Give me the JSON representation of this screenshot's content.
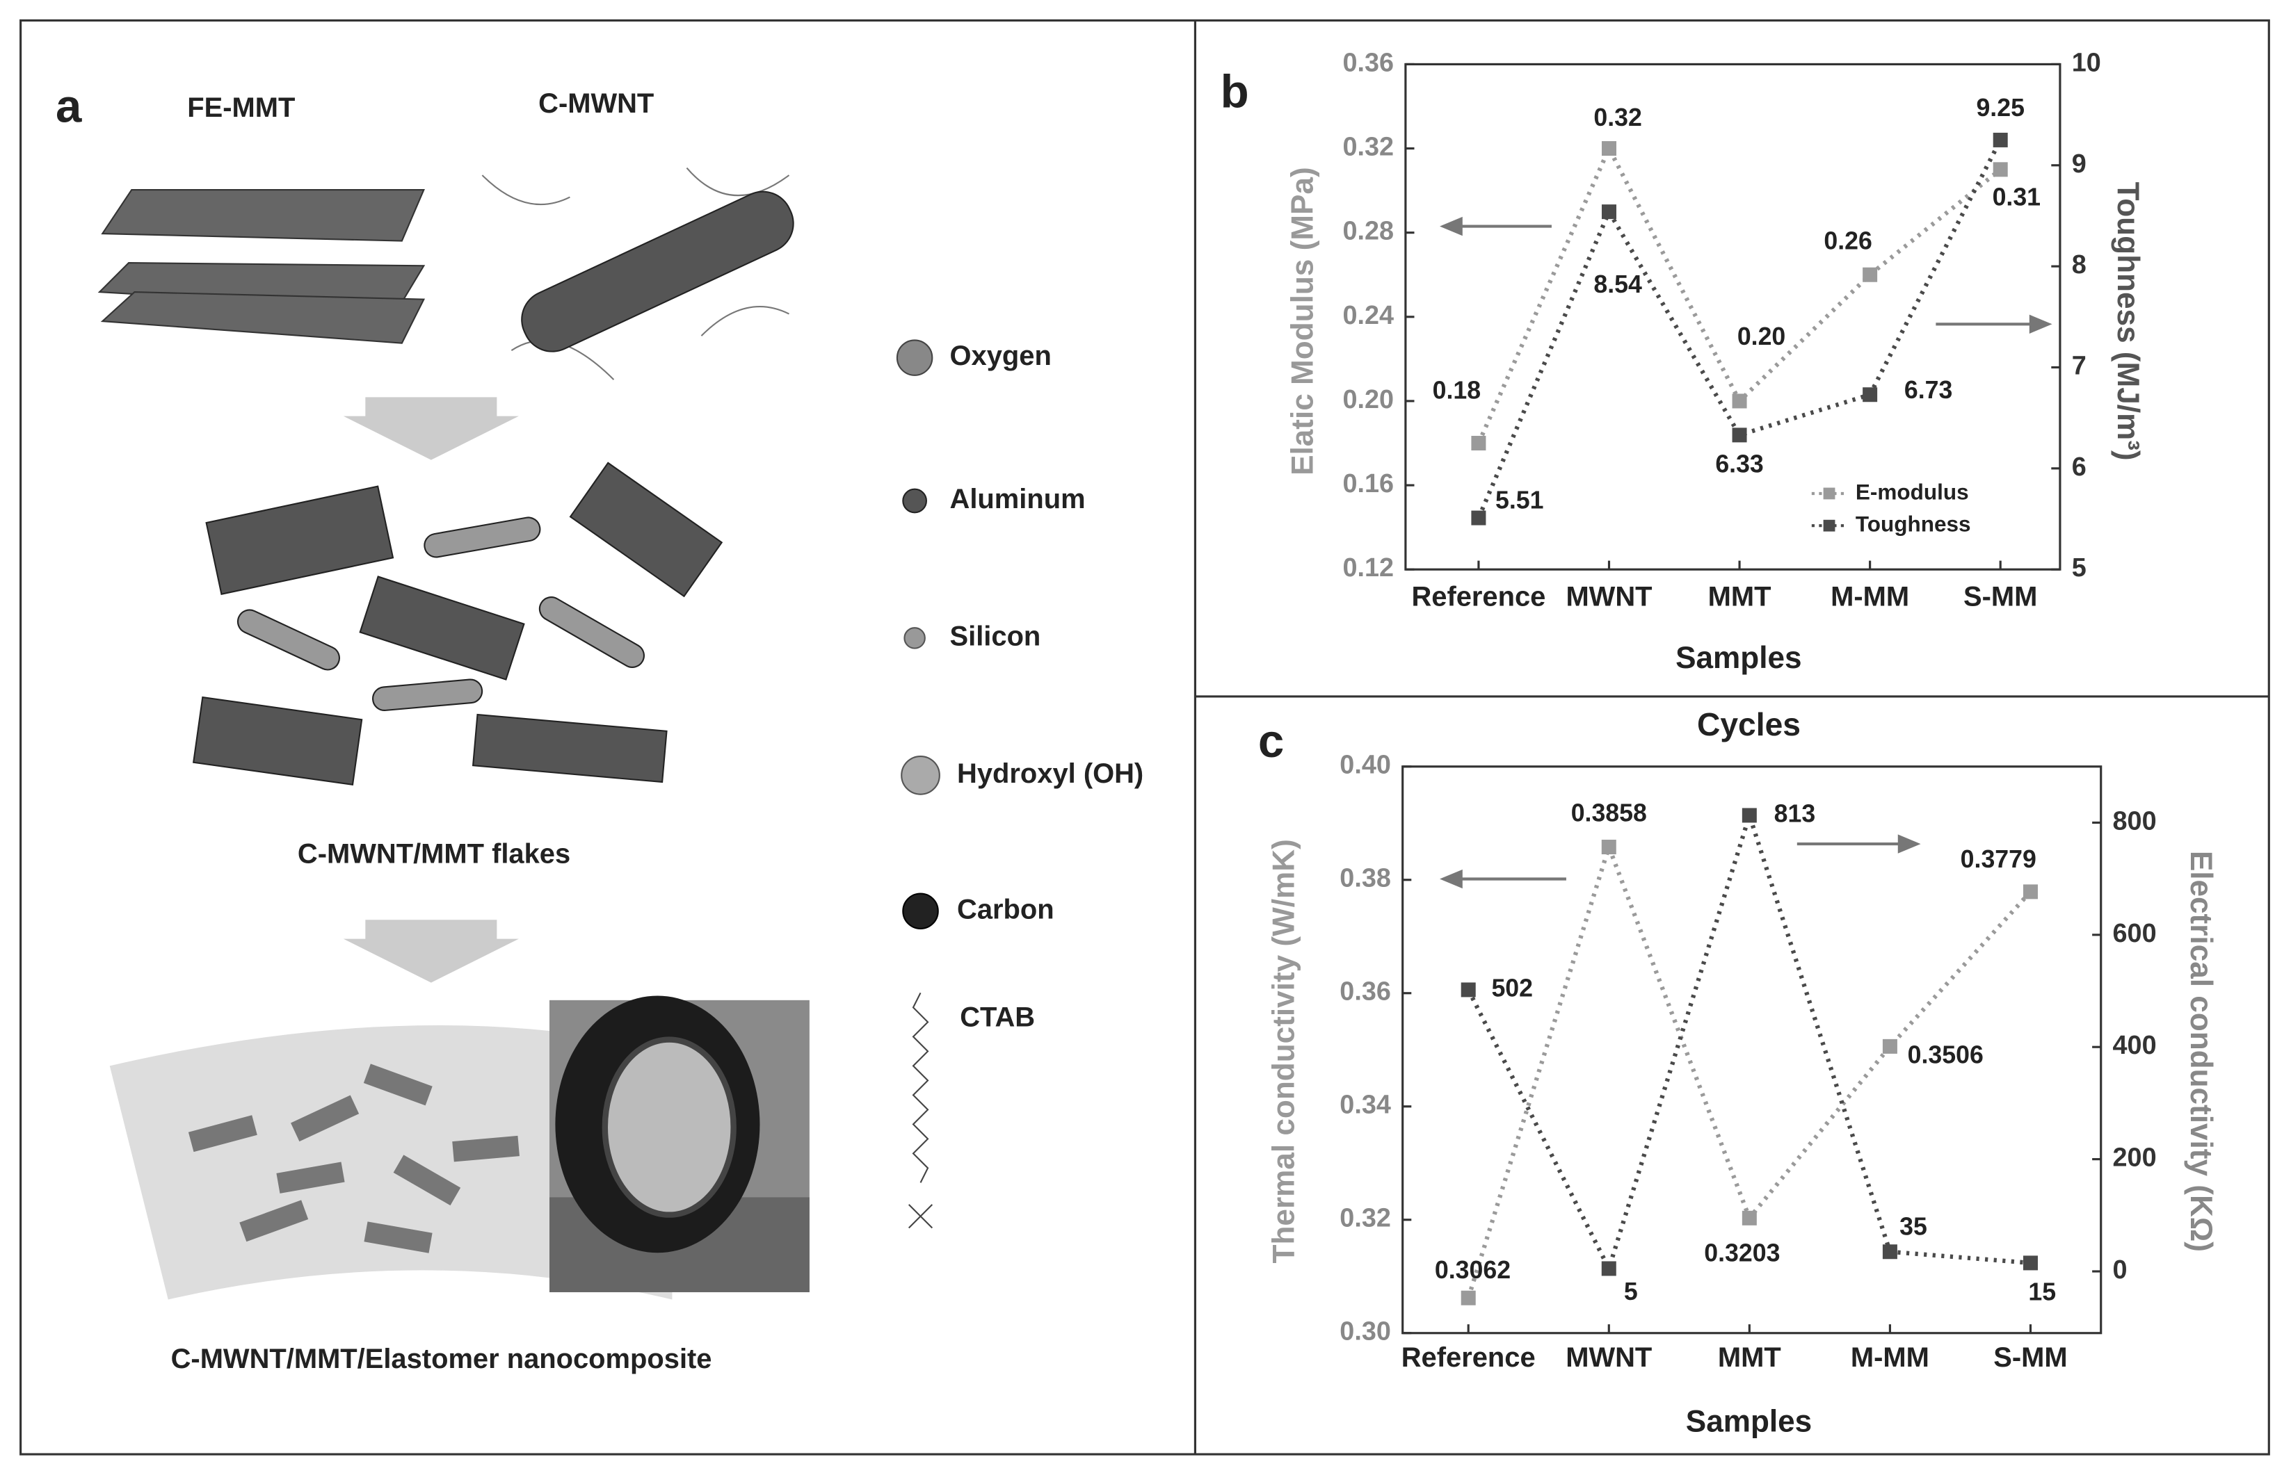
{
  "panel_a": {
    "label": "a",
    "top_labels": [
      "FE-MMT",
      "C-MWNT"
    ],
    "captions": [
      "C-MWNT/MMT flakes",
      "C-MWNT/MMT/Elastomer nanocomposite"
    ],
    "legend": [
      "Oxygen",
      "Aluminum",
      "Silicon",
      "Hydroxyl (OH)",
      "Carbon",
      "CTAB"
    ]
  },
  "chart_data": [
    {
      "type": "line",
      "label": "b",
      "x_label": "Samples",
      "y_label": "Elatic Modulus (MPa)",
      "y2_label": "Toughness (MJ/m³)",
      "categories": [
        "Reference",
        "MWNT",
        "MMT",
        "M-MM",
        "S-MM"
      ],
      "series": [
        {
          "name": "E-modulus",
          "color": "#9a9a9a",
          "values": [
            0.18,
            0.32,
            0.2,
            0.26,
            0.31
          ],
          "value_labels": [
            "0.18",
            "0.32",
            "0.20",
            "0.26",
            "0.31"
          ]
        },
        {
          "name": "Toughness",
          "color": "#4a4a4a",
          "axis": "y2",
          "values": [
            5.51,
            8.54,
            6.33,
            6.73,
            9.25
          ],
          "value_labels": [
            "5.51",
            "8.54",
            "6.33",
            "6.73",
            "9.25"
          ]
        }
      ],
      "ylim": [
        0.12,
        0.36
      ],
      "yticks": [
        0.12,
        0.16,
        {
          "value": 0.2,
          "label": "0.20"
        },
        0.24,
        0.28,
        0.32,
        0.36
      ],
      "y2lim": [
        5,
        10
      ],
      "y2ticks": [
        5,
        6,
        7,
        8,
        9,
        10
      ],
      "legend": "lower right"
    },
    {
      "type": "line",
      "label": "c",
      "title": "Cycles",
      "x_label": "Samples",
      "y_label": "Thermal conductivity (W/mK)",
      "y2_label": "Electrical conductivity (KΩ)",
      "categories": [
        "Reference",
        "MWNT",
        "MMT",
        "M-MM",
        "S-MM"
      ],
      "series": [
        {
          "color": "#9a9a9a",
          "values": [
            0.3062,
            0.3858,
            0.3203,
            0.3506,
            0.3779
          ]
        },
        {
          "color": "#4a4a4a",
          "axis": "y2",
          "values": [
            502,
            5,
            813,
            35,
            15
          ]
        }
      ],
      "ylim": [
        0.3,
        0.4
      ],
      "yticks": [
        {
          "value": 0.3,
          "label": "0.30"
        },
        0.32,
        0.34,
        0.36,
        0.38,
        {
          "value": 0.4,
          "label": "0.40"
        }
      ],
      "y2lim": [
        -110,
        900
      ],
      "y2ticks": [
        0,
        200,
        400,
        600,
        800
      ]
    }
  ]
}
